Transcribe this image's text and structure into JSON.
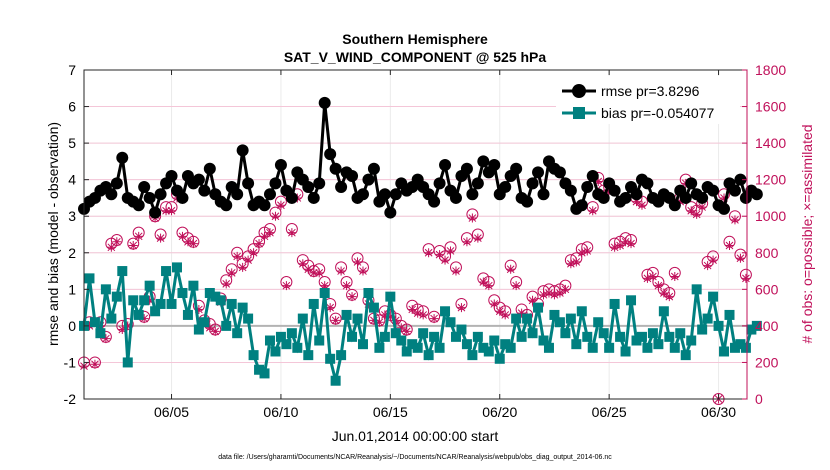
{
  "chart_data": {
    "type": "line",
    "title": "Southern Hemisphere",
    "subtitle": "SAT_V_WIND_COMPONENT @ 525 hPa",
    "xlabel": "Jun.01,2014 00:00:00 start",
    "ylabel": "rmse and bias (model - observation)",
    "ylabel_right": "# of obs: o=possible; ×=assimilated",
    "xlim": [
      1,
      31.3
    ],
    "ylim": [
      -2,
      7
    ],
    "ylim_right": [
      0,
      1800
    ],
    "xticks": [
      5,
      10,
      15,
      20,
      25,
      30
    ],
    "xtick_labels": [
      "06/05",
      "06/10",
      "06/15",
      "06/20",
      "06/25",
      "06/30"
    ],
    "yticks": [
      -2,
      -1,
      0,
      1,
      2,
      3,
      4,
      5,
      6,
      7
    ],
    "yticks_right": [
      0,
      200,
      400,
      600,
      800,
      1000,
      1200,
      1400,
      1600,
      1800
    ],
    "grid": true,
    "footnote": "data file: /Users/gharamti/Documents/NCAR/Reanalysis/~/Documents/NCAR/Reanalysis/webpub/obs_diag_output_2014-06.nc",
    "colors": {
      "rmse": "#000000",
      "bias": "#008080",
      "counts": "#c0105a",
      "zero_line": "#b3b3b3"
    },
    "series": [
      {
        "name": "rmse pr=3.8296",
        "x_start": 1.0,
        "x_step": 0.25,
        "values": [
          3.2,
          3.4,
          3.5,
          3.7,
          3.8,
          3.6,
          3.9,
          4.6,
          3.5,
          3.4,
          3.3,
          3.8,
          3.5,
          3.1,
          3.6,
          3.9,
          4.1,
          3.7,
          3.5,
          4.1,
          3.9,
          4.0,
          3.7,
          4.3,
          3.6,
          3.4,
          3.3,
          3.8,
          3.6,
          4.8,
          3.9,
          3.3,
          3.4,
          3.3,
          3.6,
          3.9,
          4.4,
          3.7,
          3.5,
          4.2,
          4.0,
          3.8,
          3.5,
          3.9,
          6.1,
          4.7,
          4.3,
          3.8,
          4.2,
          4.1,
          3.5,
          3.6,
          4.0,
          4.3,
          3.4,
          3.6,
          3.1,
          3.6,
          3.9,
          3.7,
          3.8,
          4.0,
          3.8,
          3.6,
          3.4,
          3.9,
          4.4,
          3.7,
          3.5,
          4.1,
          4.3,
          3.6,
          3.9,
          4.5,
          4.2,
          4.4,
          3.6,
          3.8,
          4.1,
          4.3,
          3.5,
          3.4,
          3.9,
          4.2,
          3.6,
          4.5,
          4.3,
          4.2,
          3.9,
          3.7,
          3.2,
          3.3,
          3.8,
          4.1,
          3.6,
          3.5,
          3.9,
          3.7,
          3.4,
          3.5,
          3.8,
          3.6,
          4.0,
          3.9,
          3.5,
          3.4,
          3.6,
          3.5,
          3.3,
          3.7,
          3.5,
          3.9,
          3.6,
          3.5,
          3.8,
          3.7,
          3.3,
          3.2,
          3.9,
          3.7,
          4.0,
          3.5,
          3.7,
          3.6
        ]
      },
      {
        "name": "bias pr=-0.054077",
        "x_start": 1.0,
        "x_step": 0.25,
        "values": [
          0.0,
          1.3,
          0.1,
          -0.2,
          1.0,
          0.2,
          0.8,
          1.5,
          -1.0,
          0.7,
          0.3,
          0.7,
          1.1,
          0.4,
          0.6,
          1.5,
          0.6,
          1.6,
          0.9,
          0.3,
          1.1,
          -0.1,
          0.1,
          0.9,
          0.8,
          0.7,
          0.0,
          0.6,
          -0.2,
          0.5,
          0.2,
          -0.8,
          -1.2,
          -1.3,
          -0.4,
          -0.7,
          -0.3,
          -0.5,
          -0.2,
          -0.6,
          0.2,
          -0.8,
          0.6,
          -0.4,
          0.9,
          -0.9,
          -1.5,
          -0.8,
          0.3,
          -0.3,
          0.2,
          -0.5,
          0.9,
          0.5,
          -0.6,
          -0.3,
          0.8,
          -0.2,
          -0.4,
          -0.7,
          -0.5,
          -0.6,
          -0.2,
          -0.8,
          -0.3,
          -0.6,
          0.4,
          0.1,
          -0.3,
          -0.1,
          -0.5,
          -0.8,
          -0.3,
          -0.6,
          -0.7,
          -0.4,
          -0.9,
          -0.5,
          -0.6,
          0.2,
          -0.3,
          0.2,
          -0.2,
          0.5,
          -0.4,
          -0.6,
          0.3,
          0.1,
          -0.2,
          0.2,
          -0.5,
          0.4,
          -0.3,
          -0.6,
          0.1,
          -0.2,
          -0.6,
          0.6,
          -0.3,
          -0.7,
          0.7,
          -0.4,
          -0.3,
          -0.6,
          -0.2,
          -0.5,
          0.4,
          -0.3,
          -0.6,
          -0.2,
          -0.8,
          -0.4,
          1.0,
          -0.1,
          0.2,
          0.8,
          0.0,
          -0.7,
          0.3,
          -0.6,
          -0.5,
          -0.6,
          -0.1,
          0.0
        ]
      },
      {
        "name": "possible obs",
        "marker": "circle",
        "x_start": 1.0,
        "x_step": 0.25,
        "values": [
          200,
          420,
          200,
          420,
          340,
          850,
          870,
          400,
          410,
          850,
          910,
          450,
          560,
          1000,
          900,
          1050,
          1050,
          1120,
          910,
          880,
          860,
          510,
          430,
          410,
          380,
          550,
          650,
          710,
          800,
          740,
          780,
          820,
          860,
          910,
          930,
          1020,
          1080,
          640,
          930,
          1120,
          760,
          730,
          700,
          710,
          640,
          520,
          440,
          720,
          640,
          570,
          770,
          720,
          540,
          440,
          430,
          480,
          460,
          440,
          400,
          380,
          510,
          490,
          480,
          820,
          450,
          810,
          780,
          830,
          720,
          520,
          880,
          1010,
          900,
          660,
          640,
          540,
          500,
          480,
          730,
          640,
          490,
          460,
          560,
          520,
          590,
          600,
          590,
          600,
          620,
          760,
          770,
          820,
          830,
          1050,
          1210,
          1140,
          1160,
          850,
          860,
          880,
          870,
          1100,
          1080,
          680,
          690,
          640,
          600,
          580,
          690,
          1100,
          1200,
          1050,
          1030,
          1070,
          750,
          780,
          0,
          1120,
          860,
          1000,
          790,
          680
        ]
      },
      {
        "name": "assimilated obs",
        "marker": "x",
        "x_start": 1.0,
        "x_step": 0.25,
        "values": [
          180,
          400,
          190,
          400,
          330,
          830,
          860,
          380,
          400,
          840,
          890,
          440,
          540,
          990,
          880,
          1030,
          1030,
          1100,
          890,
          860,
          850,
          490,
          420,
          390,
          370,
          530,
          630,
          690,
          780,
          720,
          760,
          800,
          850,
          890,
          910,
          1000,
          1060,
          620,
          910,
          1100,
          740,
          710,
          690,
          690,
          620,
          500,
          430,
          700,
          620,
          560,
          750,
          700,
          520,
          430,
          420,
          460,
          450,
          430,
          390,
          370,
          490,
          470,
          460,
          800,
          440,
          790,
          760,
          810,
          700,
          500,
          860,
          990,
          880,
          640,
          620,
          520,
          480,
          460,
          710,
          620,
          470,
          450,
          540,
          500,
          570,
          580,
          570,
          580,
          600,
          740,
          750,
          800,
          810,
          1030,
          1190,
          1120,
          1140,
          830,
          840,
          860,
          850,
          1080,
          1060,
          660,
          670,
          620,
          580,
          560,
          670,
          1080,
          1180,
          1030,
          1010,
          1050,
          730,
          760,
          0,
          1100,
          840,
          980,
          770,
          660
        ]
      }
    ]
  }
}
